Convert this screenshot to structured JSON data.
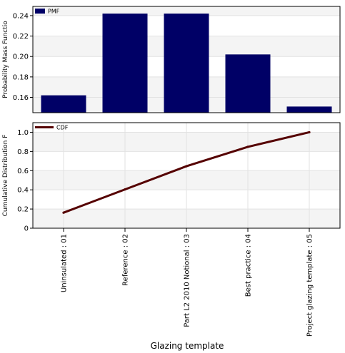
{
  "chart_data": [
    {
      "type": "bar",
      "ylabel": "Probability Mass Functio",
      "legend": "PMF",
      "legend_position": "top-left",
      "grid": true,
      "colors": {
        "bars": "#000066",
        "legend_swatch": "#000066"
      },
      "ylim": [
        0.145,
        0.249
      ],
      "yticks": [
        0.16,
        0.18,
        0.2,
        0.22,
        0.24
      ],
      "ytick_labels": [
        "0.16",
        "0.18",
        "0.20",
        "0.22",
        "0.24"
      ],
      "categories": [
        "Uninsulated : 01",
        "Reference : 02",
        "Part L2 2010 Notional : 03",
        "Best practice : 04",
        "Project glazing template : 05"
      ],
      "values": [
        0.162,
        0.242,
        0.242,
        0.202,
        0.151
      ]
    },
    {
      "type": "line",
      "ylabel": "Cumulative Distribution F",
      "legend": "CDF",
      "legend_position": "top-left",
      "grid": true,
      "colors": {
        "line": "#550000"
      },
      "ylim": [
        0,
        1.1
      ],
      "yticks": [
        0,
        0.2,
        0.4,
        0.6,
        0.8,
        1.0
      ],
      "ytick_labels": [
        "0",
        "0.2",
        "0.4",
        "0.6",
        "0.8",
        "1.0"
      ],
      "categories": [
        "Uninsulated : 01",
        "Reference : 02",
        "Part L2 2010 Notional : 03",
        "Best practice : 04",
        "Project glazing template : 05"
      ],
      "values": [
        0.162,
        0.404,
        0.646,
        0.848,
        1.0
      ]
    }
  ],
  "xlabel": "Glazing template"
}
